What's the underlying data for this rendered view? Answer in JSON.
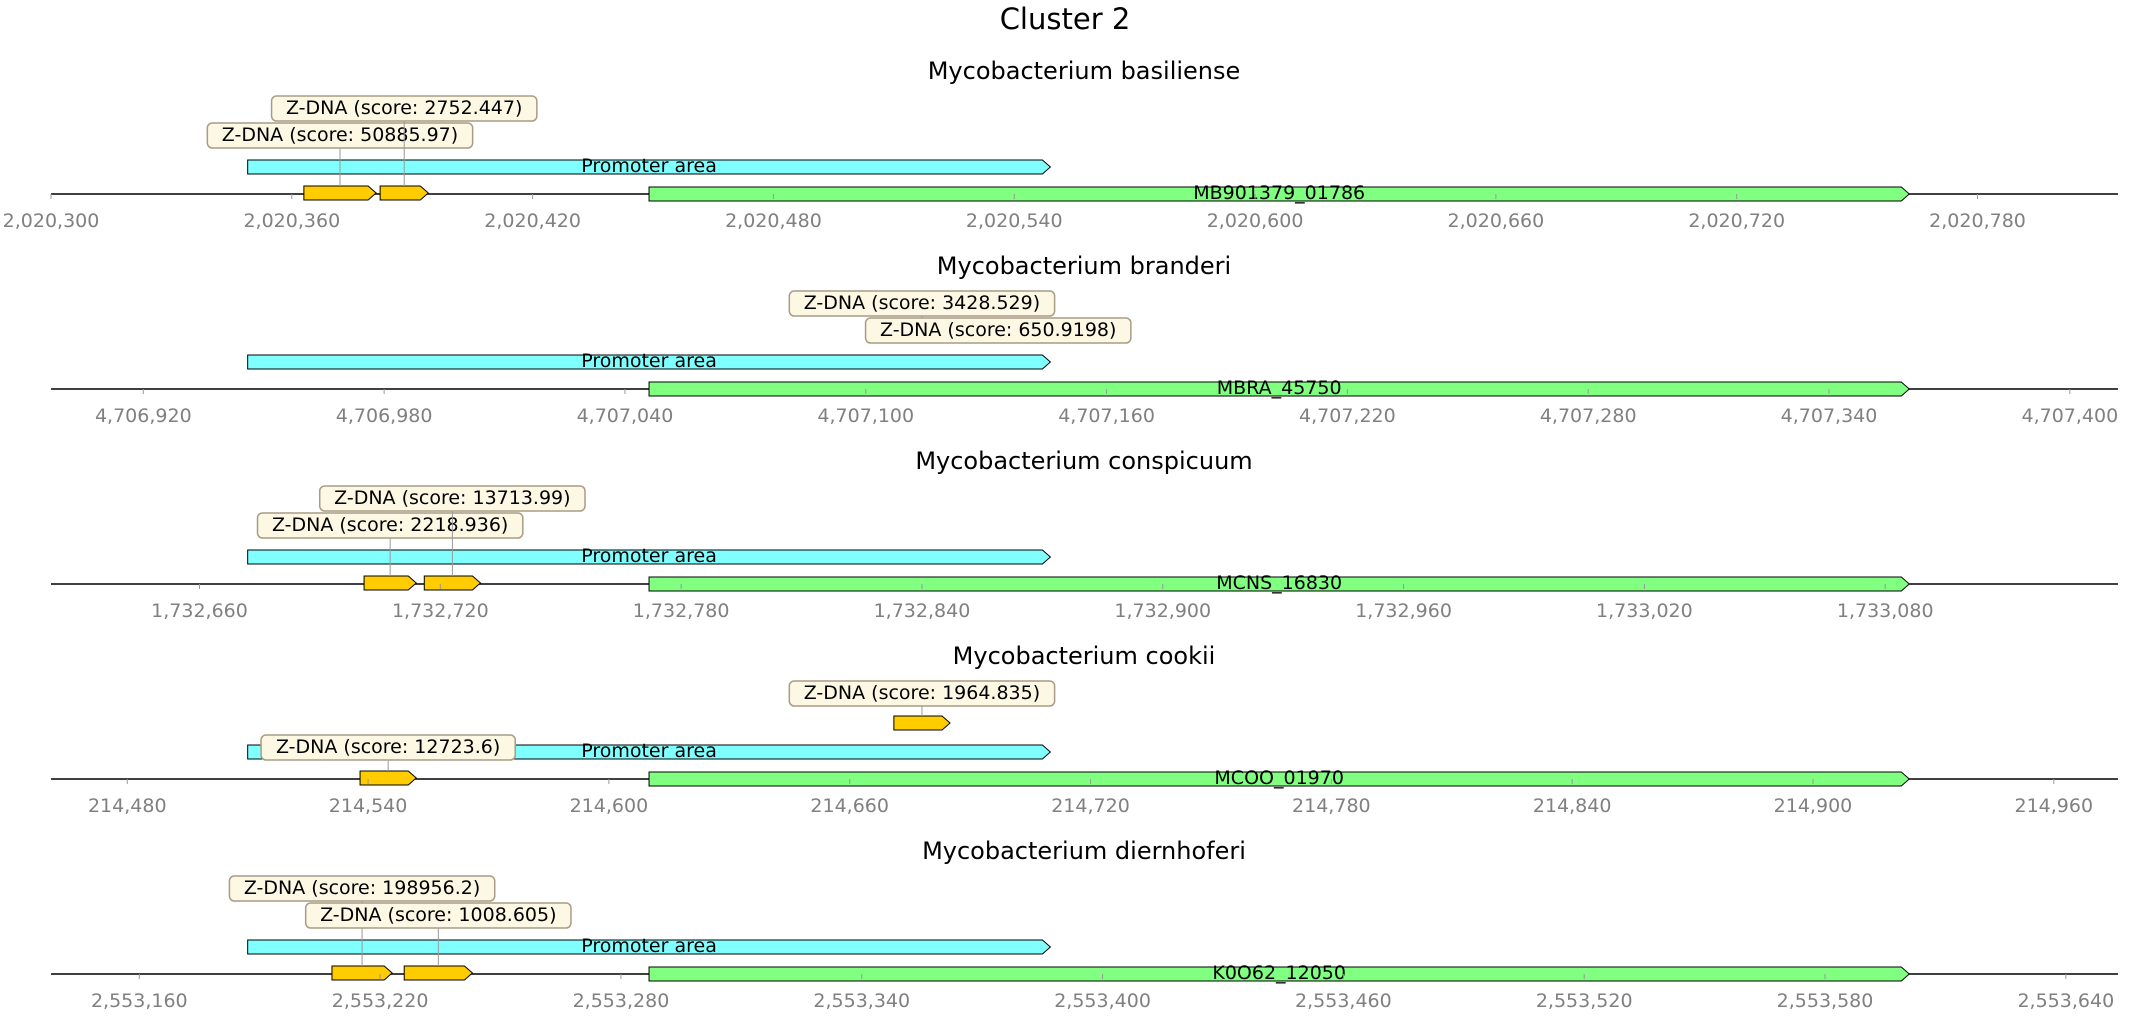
{
  "figure": {
    "title": "Cluster 2"
  },
  "colors": {
    "promoter": "#80ffff",
    "gene": "#80ff80",
    "zdna": "#ffcc00",
    "callout_fill": "#fdf8e3",
    "callout_border": "#a89c86",
    "tick_text": "#808080"
  },
  "tracks": [
    {
      "species": "Mycobacterium basiliense",
      "axis": {
        "min": 2020300,
        "max": 2020815,
        "ticks": [
          2020300,
          2020360,
          2020420,
          2020480,
          2020540,
          2020600,
          2020660,
          2020720,
          2020780
        ],
        "tick_labels": [
          "2,020,300",
          "2,020,360",
          "2,020,420",
          "2,020,480",
          "2,020,540",
          "2,020,600",
          "2,020,660",
          "2,020,720",
          "2,020,780"
        ]
      },
      "promoter": {
        "label": "Promoter area",
        "start": 2020350,
        "end": 2020550
      },
      "gene": {
        "label": "MB901379_01786",
        "start": 2020450,
        "end": 2020764
      },
      "zdna": [
        {
          "label": "Z-DNA (score: 50885.97)",
          "start": 2020364,
          "end": 2020382,
          "level": 1
        },
        {
          "label": "Z-DNA (score: 2752.447)",
          "start": 2020383,
          "end": 2020395,
          "level": 2
        }
      ]
    },
    {
      "species": "Mycobacterium branderi",
      "axis": {
        "min": 2020300,
        "max": 2020815,
        "ticks": [
          4706920,
          4706980,
          4707040,
          4707100,
          4707160,
          4707220,
          4707280,
          4707340,
          4707400
        ],
        "tick_labels": [
          "4,706,920",
          "4,706,980",
          "4,707,040",
          "4,707,100",
          "4,707,160",
          "4,707,220",
          "4,707,280",
          "4,707,340",
          "4,707,400"
        ],
        "offset_min": 4706897,
        "offset_max": 4707412
      },
      "promoter": {
        "label": "Promoter area",
        "start": 4706947,
        "end": 4707147
      },
      "gene": {
        "label": "MBRA_45750",
        "start": 4707047,
        "end": 4707361
      },
      "zdna": [
        {
          "label": "Z-DNA (score: 3428.529)",
          "start": 4707109,
          "end": 4707121,
          "level": 2
        },
        {
          "label": "Z-DNA (score: 650.9198)",
          "start": 4707129,
          "end": 4707139,
          "level": 1
        }
      ]
    },
    {
      "species": "Mycobacterium conspicuum",
      "axis": {
        "ticks": [
          1732660,
          1732720,
          1732780,
          1732840,
          1732900,
          1732960,
          1733020,
          1733080
        ],
        "tick_labels": [
          "1,732,660",
          "1,732,720",
          "1,732,780",
          "1,732,840",
          "1,732,900",
          "1,732,960",
          "1,733,020",
          "1,733,080"
        ],
        "offset_min": 1732623,
        "offset_max": 1733138
      },
      "promoter": {
        "label": "Promoter area",
        "start": 1732673,
        "end": 1732873
      },
      "gene": {
        "label": "MCNS_16830",
        "start": 1732773,
        "end": 1733087
      },
      "zdna": [
        {
          "label": "Z-DNA (score: 2218.936)",
          "start": 1732702,
          "end": 1732715,
          "level": 1
        },
        {
          "label": "Z-DNA (score: 13713.99)",
          "start": 1732717,
          "end": 1732731,
          "level": 2
        }
      ]
    },
    {
      "species": "Mycobacterium cookii",
      "axis": {
        "ticks": [
          214480,
          214540,
          214600,
          214660,
          214720,
          214780,
          214840,
          214900,
          214960
        ],
        "tick_labels": [
          "214,480",
          "214,540",
          "214,600",
          "214,660",
          "214,720",
          "214,780",
          "214,840",
          "214,900",
          "214,960"
        ],
        "offset_min": 214461,
        "offset_max": 214976
      },
      "promoter": {
        "label": "Promoter area",
        "start": 214511,
        "end": 214711
      },
      "gene": {
        "label": "MCOO_01970",
        "start": 214611,
        "end": 214925
      },
      "zdna": [
        {
          "label": "Z-DNA (score: 12723.6)",
          "start": 214539,
          "end": 214553,
          "level": 0
        },
        {
          "label": "Z-DNA (score: 1964.835)",
          "start": 214672,
          "end": 214686,
          "level": 1
        }
      ]
    },
    {
      "species": "Mycobacterium diernhoferi",
      "axis": {
        "ticks": [
          2553160,
          2553220,
          2553280,
          2553340,
          2553400,
          2553460,
          2553520,
          2553580,
          2553640
        ],
        "tick_labels": [
          "2,553,160",
          "2,553,220",
          "2,553,280",
          "2,553,340",
          "2,553,400",
          "2,553,460",
          "2,553,520",
          "2,553,580",
          "2,553,640"
        ],
        "offset_min": 2553138,
        "offset_max": 2553653
      },
      "promoter": {
        "label": "Promoter area",
        "start": 2553188,
        "end": 2553388
      },
      "gene": {
        "label": "K0O62_12050",
        "start": 2553288,
        "end": 2553602
      },
      "zdna": [
        {
          "label": "Z-DNA (score: 198956.2)",
          "start": 2553209,
          "end": 2553224,
          "level": 2
        },
        {
          "label": "Z-DNA (score: 1008.605)",
          "start": 2553227,
          "end": 2553244,
          "level": 1
        }
      ]
    }
  ]
}
